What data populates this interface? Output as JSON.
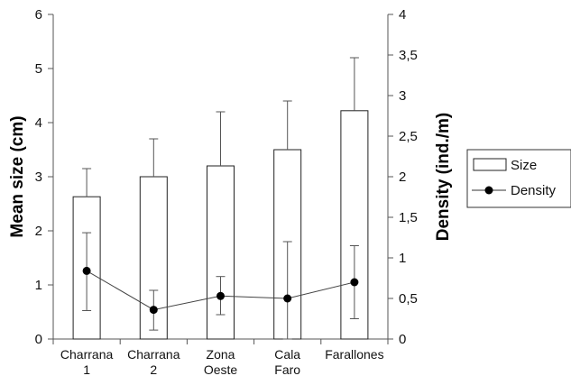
{
  "chart_data": {
    "type": "bar",
    "categories": [
      [
        "Charrana",
        "1"
      ],
      [
        "Charrana",
        "2"
      ],
      [
        "Zona",
        "Oeste"
      ],
      [
        "Cala",
        "Faro"
      ],
      [
        "Farallones"
      ]
    ],
    "ylabel": "Mean size (cm)",
    "y2label": "Density (ind./m)",
    "ylim": [
      0,
      6
    ],
    "y2lim": [
      0,
      4
    ],
    "yticks": [
      "0",
      "1",
      "2",
      "3",
      "4",
      "5",
      "6"
    ],
    "y2ticks": [
      "0",
      "0,5",
      "1",
      "1,5",
      "2",
      "2,5",
      "3",
      "3,5",
      "4"
    ],
    "series": [
      {
        "name": "Size",
        "kind": "bar",
        "axis": "left",
        "values": [
          2.63,
          3.0,
          3.2,
          3.5,
          4.22
        ],
        "error_upper": [
          3.15,
          3.7,
          4.2,
          4.4,
          5.2
        ]
      },
      {
        "name": "Density",
        "kind": "line",
        "axis": "right",
        "values": [
          0.84,
          0.36,
          0.53,
          0.5,
          0.7
        ],
        "error_lower": [
          0.35,
          0.11,
          0.3,
          0.0,
          0.25
        ],
        "error_upper": [
          1.31,
          0.6,
          0.77,
          1.2,
          1.15
        ]
      }
    ],
    "grid": false,
    "legend": "right"
  }
}
